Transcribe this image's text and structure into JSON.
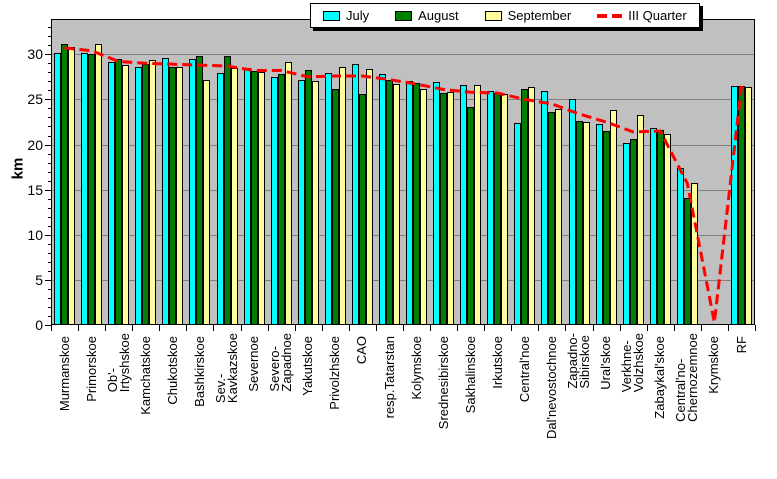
{
  "chart_data": {
    "type": "bar",
    "title": "",
    "xlabel": "",
    "ylabel": "km",
    "ylim": [
      0,
      34
    ],
    "yticks": [
      0,
      5,
      10,
      15,
      20,
      25,
      30
    ],
    "grid": "on",
    "legend_position": "top",
    "plot_bg_color": "#C0C0C0",
    "gridline_color": "#808080",
    "categories": [
      "Murmanskoe",
      "Primorskoe",
      "Ob'-\nIrtyshskoe",
      "Kamchatskoe",
      "Chukotskoe",
      "Bashkirskoe",
      "Sev.-\nKavkazskoe",
      "Severnoe",
      "Severo-\nZapadnoe",
      "Yakutskoe",
      "Privolzhskoe",
      "CAO",
      "resp.Tatarstan",
      "Kolymskoe",
      "Srednesibirskoe",
      "Sakhalinskoe",
      "Irkutskoe",
      "Central'noe",
      "Dal'nevostochnoe",
      "Zapadno-\nSibirskoe",
      "Ural'skoe",
      "Verkhne-\nVolzhskoe",
      "Zabaykal'skoe",
      "Central'no-\nChernozemnoe",
      "Krymskoe",
      "RF"
    ],
    "series": [
      {
        "name": "July",
        "color": "#00FFFF",
        "values": [
          30.1,
          30.1,
          29.2,
          28.6,
          29.6,
          29.5,
          27.9,
          28.5,
          27.5,
          27.2,
          27.9,
          28.9,
          27.8,
          27.0,
          26.9,
          26.6,
          25.9,
          22.4,
          25.9,
          25.1,
          22.3,
          20.2,
          21.8,
          17.4,
          0,
          26.5
        ]
      },
      {
        "name": "August",
        "color": "#008000",
        "values": [
          31.2,
          30.0,
          29.5,
          28.9,
          28.6,
          29.8,
          29.8,
          28.2,
          27.8,
          28.3,
          26.2,
          25.6,
          27.2,
          26.8,
          25.7,
          24.2,
          25.7,
          26.2,
          23.6,
          22.6,
          21.5,
          20.6,
          21.6,
          14.1,
          0,
          26.5
        ]
      },
      {
        "name": "September",
        "color": "#FFFF99",
        "values": [
          30.8,
          31.1,
          28.8,
          29.4,
          28.6,
          27.2,
          28.5,
          28.0,
          29.2,
          27.1,
          28.6,
          28.4,
          26.7,
          26.2,
          25.8,
          26.6,
          25.6,
          26.4,
          23.9,
          22.5,
          23.8,
          23.3,
          21.2,
          15.7,
          0,
          26.4
        ]
      }
    ],
    "line_series": {
      "name": "III Quarter",
      "color": "#FF0000",
      "style": "dashed",
      "values": [
        30.7,
        30.4,
        29.2,
        29.0,
        28.9,
        28.8,
        28.7,
        28.2,
        28.2,
        27.5,
        27.6,
        27.6,
        27.2,
        26.7,
        26.1,
        25.8,
        25.7,
        25.0,
        24.5,
        23.4,
        22.5,
        21.4,
        21.5,
        15.7,
        0.3,
        26.5
      ]
    }
  }
}
